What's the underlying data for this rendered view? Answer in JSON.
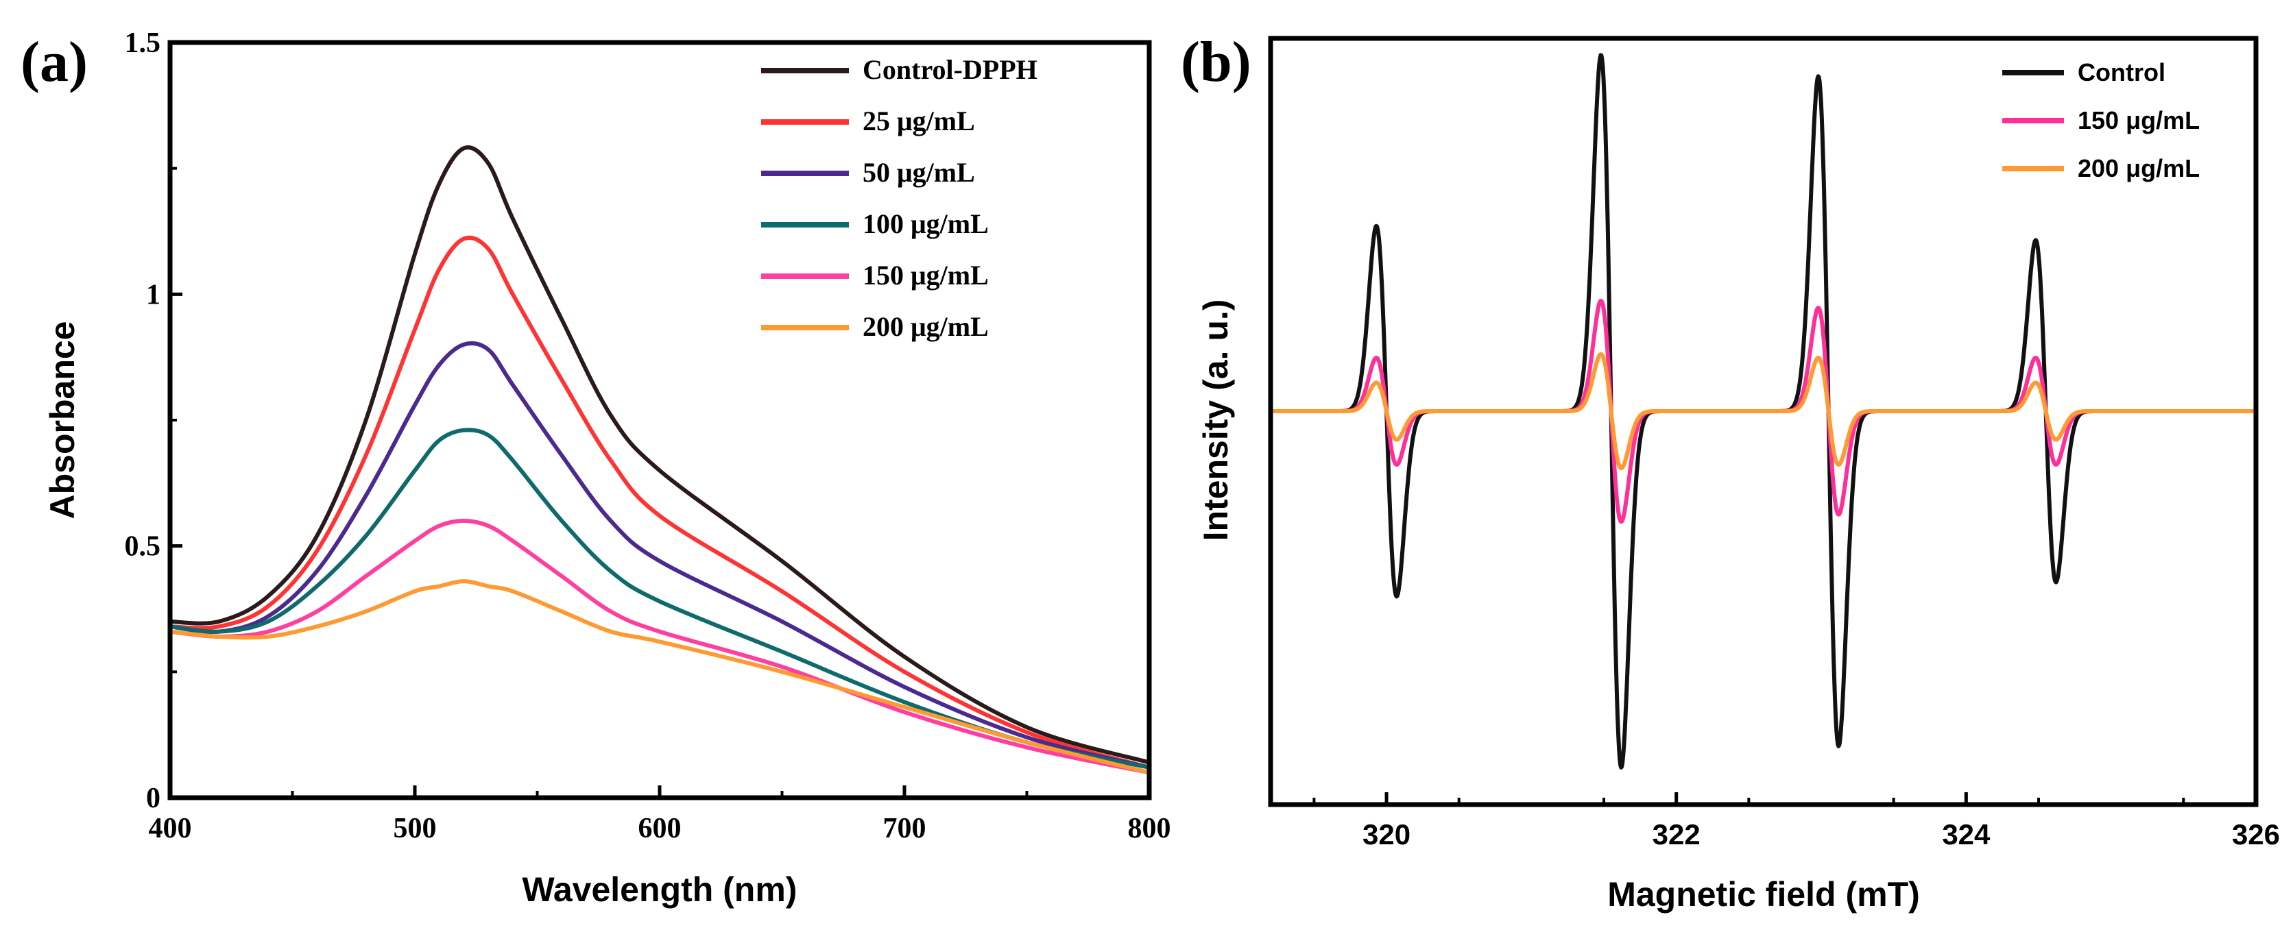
{
  "figure": {
    "panel_a_label": "(a)",
    "panel_b_label": "(b)"
  },
  "chart_data": [
    {
      "panel": "(a)",
      "type": "line",
      "title": "",
      "xlabel": "Wavelength (nm)",
      "ylabel": "Absorbance",
      "xlim": [
        400,
        800
      ],
      "ylim": [
        0,
        1.5
      ],
      "x_ticks": [
        400,
        500,
        600,
        700,
        800
      ],
      "x_tick_labels": [
        "400",
        "500",
        "600",
        "700",
        "800"
      ],
      "y_ticks": [
        0,
        0.5,
        1,
        1.5
      ],
      "y_tick_labels": [
        "0",
        "0.5",
        "1",
        "1.5"
      ],
      "legend_position": "top-right",
      "x": [
        400,
        420,
        440,
        460,
        480,
        500,
        510,
        520,
        530,
        540,
        560,
        580,
        600,
        650,
        700,
        750,
        800
      ],
      "series": [
        {
          "name": "Control-DPPH",
          "color": "#2a1a1a",
          "values": [
            0.35,
            0.35,
            0.4,
            0.52,
            0.75,
            1.08,
            1.22,
            1.29,
            1.26,
            1.15,
            0.95,
            0.76,
            0.65,
            0.47,
            0.28,
            0.14,
            0.07
          ]
        },
        {
          "name": "25 μg/mL",
          "color": "#ff3333",
          "values": [
            0.34,
            0.34,
            0.38,
            0.49,
            0.68,
            0.93,
            1.05,
            1.11,
            1.09,
            1.0,
            0.83,
            0.67,
            0.56,
            0.41,
            0.25,
            0.13,
            0.06
          ]
        },
        {
          "name": "50 μg/mL",
          "color": "#4b2a8f",
          "values": [
            0.34,
            0.33,
            0.36,
            0.45,
            0.6,
            0.78,
            0.86,
            0.9,
            0.89,
            0.82,
            0.68,
            0.55,
            0.47,
            0.35,
            0.22,
            0.12,
            0.06
          ]
        },
        {
          "name": "100 μg/mL",
          "color": "#0f6a6e",
          "values": [
            0.34,
            0.33,
            0.35,
            0.42,
            0.52,
            0.65,
            0.71,
            0.73,
            0.72,
            0.67,
            0.55,
            0.45,
            0.39,
            0.29,
            0.19,
            0.11,
            0.06
          ]
        },
        {
          "name": "150 μg/mL",
          "color": "#ff3fa0",
          "values": [
            0.33,
            0.32,
            0.33,
            0.37,
            0.44,
            0.51,
            0.54,
            0.55,
            0.54,
            0.51,
            0.44,
            0.37,
            0.33,
            0.26,
            0.17,
            0.1,
            0.05
          ]
        },
        {
          "name": "200 μg/mL",
          "color": "#ff9a33",
          "values": [
            0.33,
            0.32,
            0.32,
            0.34,
            0.37,
            0.41,
            0.42,
            0.43,
            0.42,
            0.41,
            0.37,
            0.33,
            0.31,
            0.25,
            0.18,
            0.11,
            0.05
          ]
        }
      ]
    },
    {
      "panel": "(b)",
      "type": "line",
      "title": "",
      "xlabel": "Magnetic field (mT)",
      "ylabel": "Intensity  (a. u.)",
      "xlim": [
        319.2,
        326
      ],
      "ylim": [
        -1,
        1
      ],
      "x_ticks": [
        320,
        322,
        324,
        326
      ],
      "x_tick_labels": [
        "320",
        "322",
        "324",
        "326"
      ],
      "y_ticks": [],
      "legend_position": "top-right",
      "peak_centers_mT": [
        320.0,
        321.55,
        323.05,
        324.55
      ],
      "line_halfwidth_mT": 0.07,
      "series": [
        {
          "name": "Control",
          "color": "#111111",
          "peak_amplitudes": [
            0.52,
            1.0,
            0.94,
            0.48
          ]
        },
        {
          "name": "150 μg/mL",
          "color": "#ff2f9a",
          "peak_amplitudes": [
            0.15,
            0.31,
            0.29,
            0.15
          ]
        },
        {
          "name": "200 μg/mL",
          "color": "#ff9a33",
          "peak_amplitudes": [
            0.08,
            0.16,
            0.15,
            0.08
          ]
        }
      ]
    }
  ]
}
